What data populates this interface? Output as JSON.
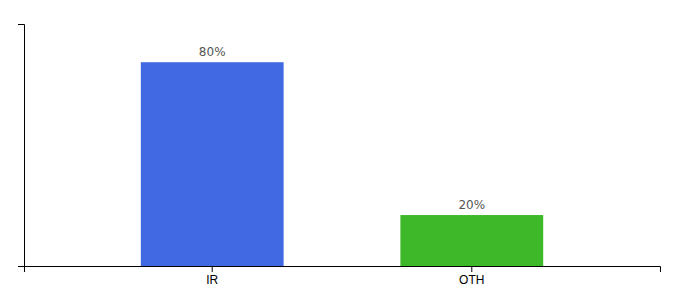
{
  "chart_data": {
    "type": "bar",
    "categories": [
      "IR",
      "OTH"
    ],
    "values": [
      80,
      20
    ],
    "value_labels": [
      "80%",
      "20%"
    ],
    "colors": [
      "#4169e1",
      "#3cb828"
    ],
    "ylim": [
      0,
      95
    ],
    "data_labels": true,
    "tick_labels": "x"
  }
}
